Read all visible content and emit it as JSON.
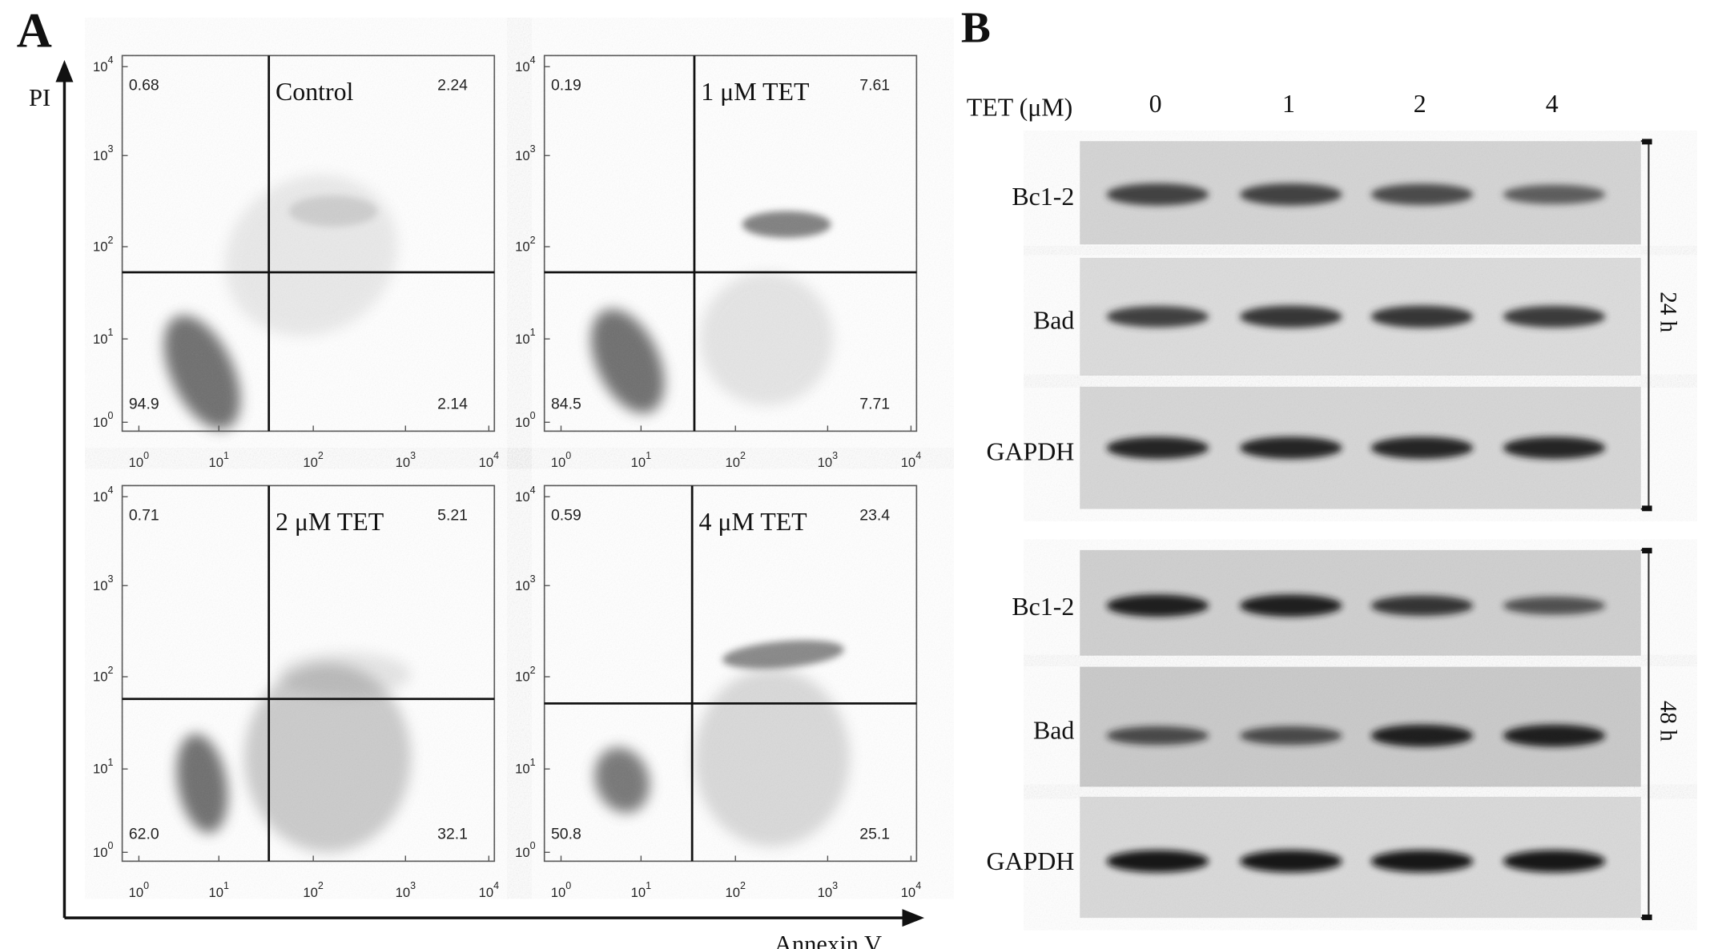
{
  "panel_a": {
    "label": "A",
    "y_axis_label": "PI",
    "x_axis_label": "Annexin V",
    "tick_base": "10",
    "tick_exponents": [
      "0",
      "1",
      "2",
      "3",
      "4"
    ],
    "plots": [
      {
        "title": "Control",
        "quadrants": {
          "upper_left": "0.68",
          "upper_right": "2.24",
          "lower_left": "94.9",
          "lower_right": "2.14"
        }
      },
      {
        "title": "1 μM TET",
        "quadrants": {
          "upper_left": "0.19",
          "upper_right": "7.61",
          "lower_left": "84.5",
          "lower_right": "7.71"
        }
      },
      {
        "title": "2 μM  TET",
        "quadrants": {
          "upper_left": "0.71",
          "upper_right": "5.21",
          "lower_left": "62.0",
          "lower_right": "32.1"
        }
      },
      {
        "title": "4 μM TET",
        "quadrants": {
          "upper_left": "0.59",
          "upper_right": "23.4",
          "lower_left": "50.8",
          "lower_right": "25.1"
        }
      }
    ]
  },
  "panel_b": {
    "label": "B",
    "header": "TET (μM)",
    "lanes": [
      "0",
      "1",
      "2",
      "4"
    ],
    "blocks": [
      {
        "time": "24 h",
        "rows": [
          "Bc1-2",
          "Bad",
          "GAPDH"
        ]
      },
      {
        "time": "48 h",
        "rows": [
          "Bc1-2",
          "Bad",
          "GAPDH"
        ]
      }
    ]
  }
}
